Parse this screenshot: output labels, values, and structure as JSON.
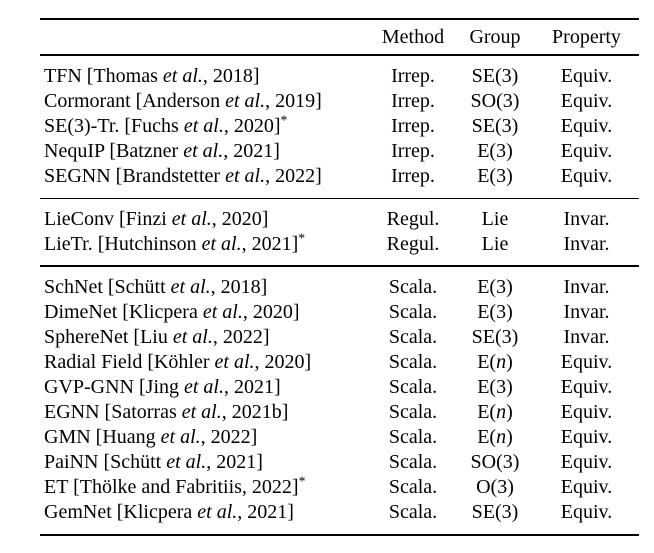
{
  "page": {
    "background_color": "#ffffff",
    "text_color": "#000000"
  },
  "table": {
    "columns": {
      "method": "Method",
      "group": "Group",
      "property": "Property"
    },
    "sections": [
      {
        "rows": [
          {
            "name": [
              {
                "t": "TFN [Thomas "
              },
              {
                "t": "et al.",
                "s": "i"
              },
              {
                "t": ", 2018]"
              }
            ],
            "method": "Irrep.",
            "group": [
              {
                "t": "SE(3)"
              }
            ],
            "property": "Equiv."
          },
          {
            "name": [
              {
                "t": "Cormorant [Anderson "
              },
              {
                "t": "et al.",
                "s": "i"
              },
              {
                "t": ", 2019]"
              }
            ],
            "method": "Irrep.",
            "group": [
              {
                "t": "SO(3)"
              }
            ],
            "property": "Equiv."
          },
          {
            "name": [
              {
                "t": "SE(3)-Tr. [Fuchs "
              },
              {
                "t": "et al.",
                "s": "i"
              },
              {
                "t": ", 2020]"
              },
              {
                "t": "*",
                "s": "sup"
              }
            ],
            "method": "Irrep.",
            "group": [
              {
                "t": "SE(3)"
              }
            ],
            "property": "Equiv."
          },
          {
            "name": [
              {
                "t": "NequIP [Batzner "
              },
              {
                "t": "et al.",
                "s": "i"
              },
              {
                "t": ", 2021]"
              }
            ],
            "method": "Irrep.",
            "group": [
              {
                "t": "E(3)"
              }
            ],
            "property": "Equiv."
          },
          {
            "name": [
              {
                "t": "SEGNN [Brandstetter "
              },
              {
                "t": "et al.",
                "s": "i"
              },
              {
                "t": ", 2022]"
              }
            ],
            "method": "Irrep.",
            "group": [
              {
                "t": "E(3)"
              }
            ],
            "property": "Equiv."
          }
        ]
      },
      {
        "rows": [
          {
            "name": [
              {
                "t": "LieConv [Finzi "
              },
              {
                "t": "et al.",
                "s": "i"
              },
              {
                "t": ", 2020]"
              }
            ],
            "method": "Regul.",
            "group": [
              {
                "t": "Lie"
              }
            ],
            "property": "Invar."
          },
          {
            "name": [
              {
                "t": "LieTr. [Hutchinson "
              },
              {
                "t": "et al.",
                "s": "i"
              },
              {
                "t": ", 2021]"
              },
              {
                "t": "*",
                "s": "sup"
              }
            ],
            "method": "Regul.",
            "group": [
              {
                "t": "Lie"
              }
            ],
            "property": "Invar."
          }
        ]
      },
      {
        "rows": [
          {
            "name": [
              {
                "t": "SchNet [Schütt "
              },
              {
                "t": "et al.",
                "s": "i"
              },
              {
                "t": ", 2018]"
              }
            ],
            "method": "Scala.",
            "group": [
              {
                "t": "E(3)"
              }
            ],
            "property": "Invar."
          },
          {
            "name": [
              {
                "t": "DimeNet [Klicpera "
              },
              {
                "t": "et al.",
                "s": "i"
              },
              {
                "t": ", 2020]"
              }
            ],
            "method": "Scala.",
            "group": [
              {
                "t": "E(3)"
              }
            ],
            "property": "Invar."
          },
          {
            "name": [
              {
                "t": "SphereNet [Liu "
              },
              {
                "t": "et al.",
                "s": "i"
              },
              {
                "t": ", 2022]"
              }
            ],
            "method": "Scala.",
            "group": [
              {
                "t": "SE(3)"
              }
            ],
            "property": "Invar."
          },
          {
            "name": [
              {
                "t": "Radial Field [Köhler "
              },
              {
                "t": "et al.",
                "s": "i"
              },
              {
                "t": ", 2020]"
              }
            ],
            "method": "Scala.",
            "group": [
              {
                "t": "E("
              },
              {
                "t": "n",
                "s": "i"
              },
              {
                "t": ")"
              }
            ],
            "property": "Equiv."
          },
          {
            "name": [
              {
                "t": "GVP-GNN [Jing "
              },
              {
                "t": "et al.",
                "s": "i"
              },
              {
                "t": ", 2021]"
              }
            ],
            "method": "Scala.",
            "group": [
              {
                "t": "E(3)"
              }
            ],
            "property": "Equiv."
          },
          {
            "name": [
              {
                "t": "EGNN [Satorras "
              },
              {
                "t": "et al.",
                "s": "i"
              },
              {
                "t": ", 2021b]"
              }
            ],
            "method": "Scala.",
            "group": [
              {
                "t": "E("
              },
              {
                "t": "n",
                "s": "i"
              },
              {
                "t": ")"
              }
            ],
            "property": "Equiv."
          },
          {
            "name": [
              {
                "t": "GMN [Huang "
              },
              {
                "t": "et al.",
                "s": "i"
              },
              {
                "t": ", 2022]"
              }
            ],
            "method": "Scala.",
            "group": [
              {
                "t": "E("
              },
              {
                "t": "n",
                "s": "i"
              },
              {
                "t": ")"
              }
            ],
            "property": "Equiv."
          },
          {
            "name": [
              {
                "t": "PaiNN [Schütt "
              },
              {
                "t": "et al.",
                "s": "i"
              },
              {
                "t": ", 2021]"
              }
            ],
            "method": "Scala.",
            "group": [
              {
                "t": "SO(3)"
              }
            ],
            "property": "Equiv."
          },
          {
            "name": [
              {
                "t": "ET [Thölke and Fabritiis, 2022]"
              },
              {
                "t": "*",
                "s": "sup"
              }
            ],
            "method": "Scala.",
            "group": [
              {
                "t": "O(3)"
              }
            ],
            "property": "Equiv."
          },
          {
            "name": [
              {
                "t": "GemNet [Klicpera "
              },
              {
                "t": "et al.",
                "s": "i"
              },
              {
                "t": ", 2021]"
              }
            ],
            "method": "Scala.",
            "group": [
              {
                "t": "SE(3)"
              }
            ],
            "property": "Equiv."
          }
        ]
      }
    ]
  }
}
